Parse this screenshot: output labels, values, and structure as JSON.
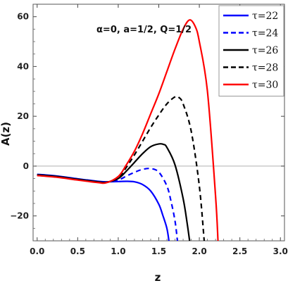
{
  "chart_data": {
    "type": "line",
    "title": "",
    "annotation": "α=0, a=1/2, Q=1/2",
    "xlabel": "z",
    "ylabel": "A(z)",
    "xlim": [
      -0.05,
      3.05
    ],
    "ylim": [
      -30,
      65
    ],
    "xticks": [
      0.0,
      0.5,
      1.0,
      1.5,
      2.0,
      2.5,
      3.0
    ],
    "xtick_labels": [
      "0.0",
      "0.5",
      "1.0",
      "1.5",
      "2.0",
      "2.5",
      "3.0"
    ],
    "yticks": [
      -20,
      0,
      20,
      40,
      60
    ],
    "ytick_labels": [
      "−20",
      "0",
      "20",
      "40",
      "60"
    ],
    "grid": false,
    "legend_position": "top-right",
    "zero_line": true,
    "series": [
      {
        "name": "τ=22",
        "color": "#0000ff",
        "dash": "solid",
        "x": [
          0.0,
          0.25,
          0.5,
          0.75,
          0.85,
          1.0,
          1.1,
          1.2,
          1.3,
          1.4,
          1.5,
          1.55,
          1.6,
          1.625
        ],
        "y": [
          -3.3,
          -4.0,
          -5.1,
          -6.1,
          -6.3,
          -6.2,
          -6.1,
          -6.3,
          -7.4,
          -10.0,
          -15.3,
          -19.8,
          -25.0,
          -30.0
        ]
      },
      {
        "name": "τ=24",
        "color": "#0000ff",
        "dash": "dashed",
        "x": [
          0.0,
          0.25,
          0.5,
          0.75,
          0.85,
          1.0,
          1.1,
          1.2,
          1.3,
          1.4,
          1.5,
          1.6,
          1.65,
          1.7,
          1.73
        ],
        "y": [
          -3.4,
          -4.1,
          -5.2,
          -6.2,
          -6.4,
          -5.6,
          -4.0,
          -2.5,
          -1.3,
          -1.0,
          -2.4,
          -8.0,
          -14.0,
          -22.0,
          -30.0
        ]
      },
      {
        "name": "τ=26",
        "color": "#000000",
        "dash": "solid",
        "x": [
          0.0,
          0.25,
          0.5,
          0.75,
          0.85,
          1.0,
          1.1,
          1.2,
          1.3,
          1.4,
          1.5,
          1.56,
          1.6,
          1.7,
          1.8,
          1.85,
          1.88
        ],
        "y": [
          -3.5,
          -4.2,
          -5.3,
          -6.3,
          -6.5,
          -5.0,
          -2.0,
          1.5,
          5.0,
          7.8,
          8.9,
          8.7,
          7.5,
          0.5,
          -13.0,
          -23.0,
          -30.0
        ]
      },
      {
        "name": "τ=28",
        "color": "#000000",
        "dash": "dashed",
        "x": [
          0.0,
          0.25,
          0.5,
          0.75,
          0.85,
          1.0,
          1.1,
          1.2,
          1.3,
          1.4,
          1.5,
          1.6,
          1.7,
          1.75,
          1.8,
          1.9,
          2.0,
          2.06
        ],
        "y": [
          -3.6,
          -4.3,
          -5.4,
          -6.4,
          -6.6,
          -4.8,
          -0.5,
          4.5,
          10.0,
          15.5,
          20.5,
          25.0,
          27.8,
          27.5,
          25.0,
          14.0,
          -8.0,
          -30.0
        ]
      },
      {
        "name": "τ=30",
        "color": "#ff0000",
        "dash": "solid",
        "x": [
          0.0,
          0.25,
          0.5,
          0.75,
          0.85,
          1.0,
          1.1,
          1.2,
          1.3,
          1.4,
          1.5,
          1.6,
          1.7,
          1.8,
          1.88,
          1.95,
          2.0,
          2.1,
          2.2,
          2.23
        ],
        "y": [
          -3.8,
          -4.5,
          -5.6,
          -6.6,
          -6.7,
          -4.2,
          0.5,
          6.0,
          13.0,
          21.0,
          29.0,
          38.0,
          47.0,
          55.0,
          58.7,
          56.0,
          50.0,
          30.0,
          -12.0,
          -30.0
        ]
      }
    ]
  }
}
